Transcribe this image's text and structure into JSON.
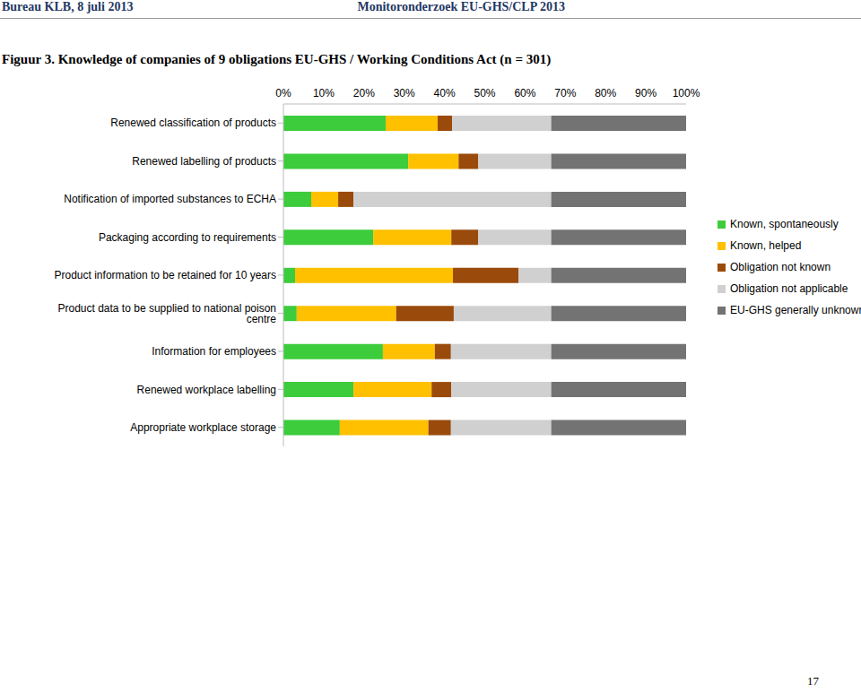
{
  "header": {
    "left": "Bureau KLB, 8 juli 2013",
    "right": "Monitoronderzoek EU-GHS/CLP 2013"
  },
  "page_number": "17",
  "chart_data": {
    "type": "bar",
    "orientation": "horizontal",
    "stacked": true,
    "grid": false,
    "legend": "right",
    "title": "Figuur 3. Knowledge of companies of 9 obligations EU-GHS / Working Conditions Act (n = 301)",
    "categories": [
      "Renewed classification of products",
      "Renewed labelling of products",
      "Notification of imported substances to ECHA",
      "Packaging according to requirements",
      "Product information to be retained for 10 years",
      "Product data to be supplied to national poison centre",
      "Information for employees",
      "Renewed workplace labelling",
      "Appropriate workplace storage"
    ],
    "series": [
      {
        "name": "Known, spontaneously",
        "color": "#3ccc3c",
        "values": [
          25.4,
          31,
          6.9,
          22.3,
          2.9,
          3.3,
          24.7,
          17.4,
          14.0
        ]
      },
      {
        "name": "Known, helped",
        "color": "#ffc000",
        "values": [
          12.9,
          12.5,
          6.7,
          19.4,
          39.2,
          24.7,
          12.9,
          19.4,
          22.0
        ]
      },
      {
        "name": "Obligation not known",
        "color": "#9a4a0a",
        "values": [
          3.6,
          4.9,
          3.8,
          6.7,
          16.3,
          14.3,
          4.0,
          4.9,
          5.6
        ]
      },
      {
        "name": "Obligation not applicable",
        "color": "#d0d0d0",
        "values": [
          24.6,
          18.1,
          49.1,
          18.1,
          8.1,
          24.2,
          24.9,
          24.8,
          24.9
        ]
      },
      {
        "name": "EU-GHS generally unknown",
        "color": "#737373",
        "values": [
          33.5,
          33.5,
          33.5,
          33.5,
          33.5,
          33.5,
          33.5,
          33.5,
          33.5
        ]
      }
    ],
    "xlim": [
      0,
      100
    ],
    "xticks": [
      {
        "value": 0,
        "label": "0%"
      },
      {
        "value": 10,
        "label": "10%"
      },
      {
        "value": 20,
        "label": "20%"
      },
      {
        "value": 30,
        "label": "30%"
      },
      {
        "value": 40,
        "label": "40%"
      },
      {
        "value": 50,
        "label": "50%"
      },
      {
        "value": 60,
        "label": "60%"
      },
      {
        "value": 70,
        "label": "70%"
      },
      {
        "value": 80,
        "label": "80%"
      },
      {
        "value": 90,
        "label": "90%"
      },
      {
        "value": 100,
        "label": "100%"
      }
    ]
  }
}
